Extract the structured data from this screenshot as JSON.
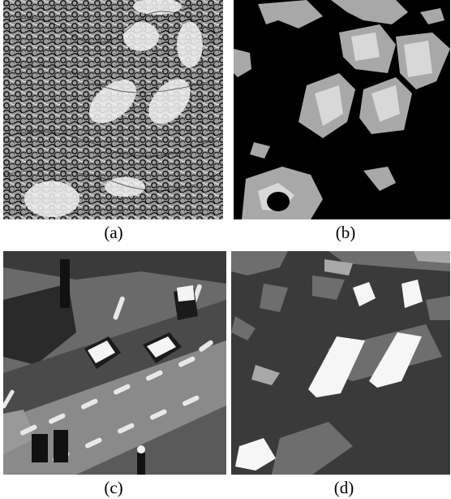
{
  "figure": {
    "panels": [
      {
        "id": "a",
        "caption": "(a)"
      },
      {
        "id": "b",
        "caption": "(b)"
      },
      {
        "id": "c",
        "caption": "(c)"
      },
      {
        "id": "d",
        "caption": "(d)"
      }
    ]
  },
  "colors": {
    "black": "#000000",
    "dark_gray": "#3a3a3a",
    "mid_gray": "#6e6e6e",
    "light_gray": "#a8a8a8",
    "white": "#ffffff"
  }
}
